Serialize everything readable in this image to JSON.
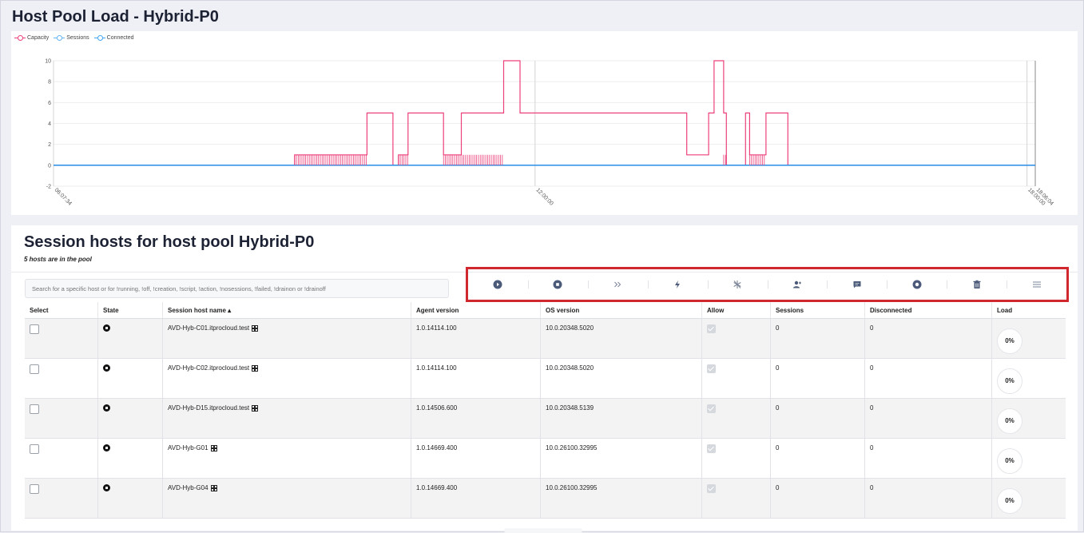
{
  "page": {
    "title": "Host Pool Load - Hybrid-P0"
  },
  "chart_data": {
    "type": "line",
    "legend": [
      "Capacity",
      "Sessions",
      "Connected"
    ],
    "legend_position": "top-left",
    "colors": {
      "Capacity": "#ec407a",
      "Sessions": "#64b5f6",
      "Connected": "#42a5f5"
    },
    "ylim": [
      -2,
      10
    ],
    "yticks": [
      "10",
      "8",
      "6",
      "4",
      "2",
      "0",
      "-2"
    ],
    "xticks": [
      "06:07:34",
      "12:00:00",
      "18:00:00",
      "18:06:04"
    ],
    "grid": true,
    "series": [
      {
        "name": "Capacity",
        "x": [
          "06:07:34",
          "09:04",
          "09:04",
          "09:57",
          "09:57",
          "10:16",
          "10:16",
          "10:20",
          "10:20",
          "10:27",
          "10:27",
          "10:53",
          "10:53",
          "11:06",
          "11:06",
          "11:37",
          "11:37",
          "11:49",
          "11:49",
          "12:00",
          "12:00",
          "13:51",
          "13:51",
          "14:07",
          "14:07",
          "14:11",
          "14:11",
          "14:18",
          "14:18",
          "14:20",
          "14:20",
          "14:34",
          "14:34",
          "14:37",
          "14:37",
          "14:49",
          "14:49",
          "15:05",
          "15:05",
          "18:06:04"
        ],
        "values": [
          0,
          0,
          1,
          1,
          5,
          5,
          0,
          0,
          1,
          1,
          5,
          5,
          1,
          1,
          5,
          5,
          10,
          10,
          5,
          5,
          5,
          5,
          1,
          1,
          5,
          5,
          10,
          10,
          5,
          5,
          0,
          0,
          5,
          5,
          1,
          1,
          5,
          5,
          0,
          0
        ]
      },
      {
        "name": "Sessions",
        "x": [
          "06:07:34",
          "18:06:04"
        ],
        "values": [
          0,
          0
        ]
      },
      {
        "name": "Connected",
        "x": [
          "06:07:34",
          "18:06:04"
        ],
        "values": [
          0,
          0
        ]
      }
    ]
  },
  "hosts_section": {
    "title": "Session hosts for host pool Hybrid-P0",
    "subtitle": "5 hosts are in the pool",
    "search_placeholder": "Search for a specific host or for !running, !off, !creation, !script, !action, !nosessions, !failed, !drainon or !drainoff"
  },
  "toolbar": {
    "actions": [
      "start-icon",
      "stop-icon",
      "forward-icon",
      "lightning-icon",
      "sparkle-off-icon",
      "user-add-icon",
      "message-icon",
      "circle-icon",
      "trash-icon",
      "menu-icon"
    ]
  },
  "table": {
    "headers": [
      "Select",
      "State",
      "Session host name ▴",
      "Agent version",
      "OS version",
      "Allow",
      "Sessions",
      "Disconnected",
      "Load"
    ],
    "rows": [
      {
        "name": "AVD-Hyb-C01.itprocloud.test",
        "agent": "1.0.14114.100",
        "os": "10.0.20348.5020",
        "sessions": "0",
        "disconnected": "0",
        "load": "0%"
      },
      {
        "name": "AVD-Hyb-C02.itprocloud.test",
        "agent": "1.0.14114.100",
        "os": "10.0.20348.5020",
        "sessions": "0",
        "disconnected": "0",
        "load": "0%"
      },
      {
        "name": "AVD-Hyb-D15.itprocloud.test",
        "agent": "1.0.14506.600",
        "os": "10.0.20348.5139",
        "sessions": "0",
        "disconnected": "0",
        "load": "0%"
      },
      {
        "name": "AVD-Hyb-G01",
        "agent": "1.0.14669.400",
        "os": "10.0.26100.32995",
        "sessions": "0",
        "disconnected": "0",
        "load": "0%"
      },
      {
        "name": "AVD-Hyb-G04",
        "agent": "1.0.14669.400",
        "os": "10.0.26100.32995",
        "sessions": "0",
        "disconnected": "0",
        "load": "0%"
      }
    ]
  }
}
